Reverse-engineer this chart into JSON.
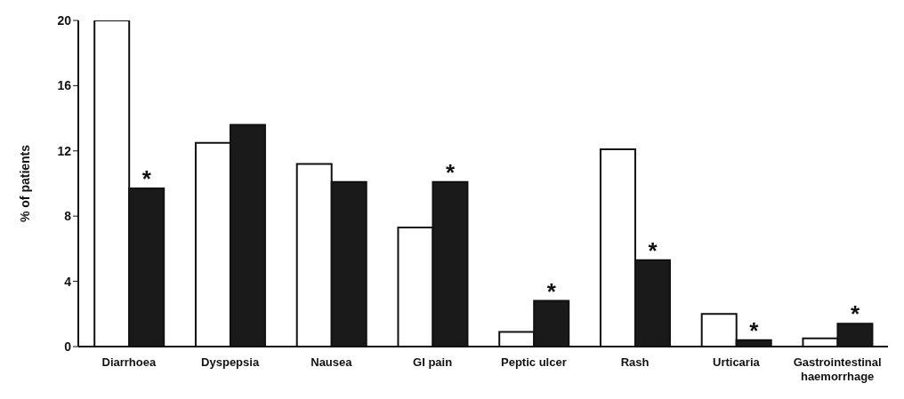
{
  "chart_data": {
    "type": "bar",
    "ylabel": "% of patients",
    "categories": [
      "Diarrhoea",
      "Dyspepsia",
      "Nausea",
      "GI pain",
      "Peptic ulcer",
      "Rash",
      "Urticaria",
      "Gastrointestinal haemorrhage"
    ],
    "series": [
      {
        "color": "#ffffff",
        "values": [
          20,
          12.5,
          11.2,
          7.3,
          0.9,
          12.1,
          2.0,
          0.5
        ]
      },
      {
        "color": "#1a1a1a",
        "values": [
          9.7,
          13.6,
          10.1,
          10.1,
          2.8,
          5.3,
          0.4,
          1.4
        ]
      }
    ],
    "ylim": [
      0,
      20
    ],
    "yticks": [
      0,
      4,
      8,
      12,
      16,
      20
    ],
    "grid": false,
    "legend": false,
    "annotations": [
      {
        "text": "*",
        "x": "Diarrhoea",
        "y": 9.7
      },
      {
        "text": "*",
        "x": "GI pain",
        "y": 10.1
      },
      {
        "text": "*",
        "x": "Peptic ulcer",
        "y": 2.8
      },
      {
        "text": "*",
        "x": "Rash",
        "y": 5.3
      },
      {
        "text": "*",
        "x": "Urticaria",
        "y": 0.4
      },
      {
        "text": "*",
        "x": "Gastrointestinal haemorrhage",
        "y": 1.4
      }
    ]
  }
}
